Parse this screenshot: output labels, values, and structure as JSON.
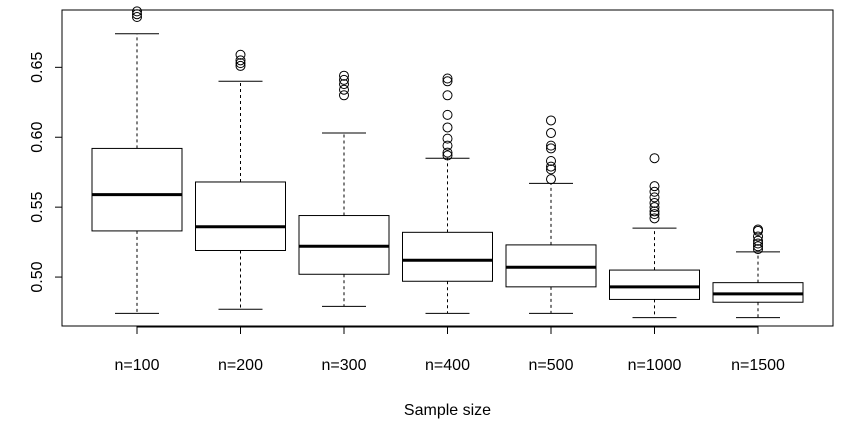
{
  "chart_data": {
    "type": "boxplot",
    "xlabel": "Sample size",
    "ylabel": "",
    "title": "",
    "ylim": [
      0.465,
      0.691
    ],
    "yticks": [
      0.5,
      0.55,
      0.6,
      0.65
    ],
    "ytick_labels": [
      "0.50",
      "0.55",
      "0.60",
      "0.65"
    ],
    "categories": [
      "n=100",
      "n=200",
      "n=300",
      "n=400",
      "n=500",
      "n=1000",
      "n=1500"
    ],
    "boxes": [
      {
        "category": "n=100",
        "lower_whisker": 0.474,
        "q1": 0.533,
        "median": 0.559,
        "q3": 0.592,
        "upper_whisker": 0.674,
        "outliers": [
          0.686,
          0.688,
          0.69
        ]
      },
      {
        "category": "n=200",
        "lower_whisker": 0.477,
        "q1": 0.519,
        "median": 0.536,
        "q3": 0.568,
        "upper_whisker": 0.64,
        "outliers": [
          0.651,
          0.653,
          0.655,
          0.659
        ]
      },
      {
        "category": "n=300",
        "lower_whisker": 0.479,
        "q1": 0.502,
        "median": 0.522,
        "q3": 0.544,
        "upper_whisker": 0.603,
        "outliers": [
          0.63,
          0.634,
          0.638,
          0.641,
          0.644
        ]
      },
      {
        "category": "n=400",
        "lower_whisker": 0.474,
        "q1": 0.497,
        "median": 0.512,
        "q3": 0.532,
        "upper_whisker": 0.585,
        "outliers": [
          0.587,
          0.589,
          0.594,
          0.599,
          0.607,
          0.616,
          0.63,
          0.64,
          0.642
        ]
      },
      {
        "category": "n=500",
        "lower_whisker": 0.474,
        "q1": 0.493,
        "median": 0.507,
        "q3": 0.523,
        "upper_whisker": 0.567,
        "outliers": [
          0.57,
          0.577,
          0.579,
          0.583,
          0.592,
          0.594,
          0.603,
          0.612
        ]
      },
      {
        "category": "n=1000",
        "lower_whisker": 0.471,
        "q1": 0.484,
        "median": 0.493,
        "q3": 0.505,
        "upper_whisker": 0.535,
        "outliers": [
          0.542,
          0.545,
          0.547,
          0.55,
          0.553,
          0.557,
          0.561,
          0.565,
          0.585
        ]
      },
      {
        "category": "n=1500",
        "lower_whisker": 0.471,
        "q1": 0.482,
        "median": 0.488,
        "q3": 0.496,
        "upper_whisker": 0.518,
        "outliers": [
          0.52,
          0.522,
          0.524,
          0.526,
          0.529,
          0.533,
          0.534
        ]
      }
    ]
  }
}
